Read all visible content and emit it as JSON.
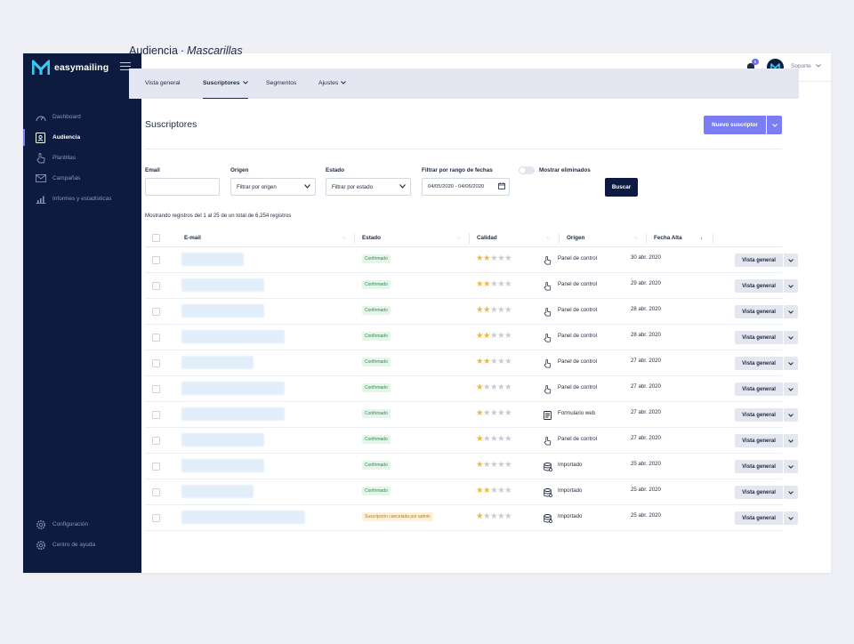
{
  "brand": {
    "name": "easymailing",
    "logo_icon": "m-logo-icon"
  },
  "sidebar": {
    "items": [
      {
        "label": "Dashboard",
        "icon": "gauge-icon"
      },
      {
        "label": "Audiencia",
        "icon": "address-book-icon",
        "active": true
      },
      {
        "label": "Plantillas",
        "icon": "hand-pointer-icon"
      },
      {
        "label": "Campañas",
        "icon": "envelope-icon"
      },
      {
        "label": "Informes y estadísticas",
        "icon": "bar-chart-icon"
      }
    ],
    "bottom_items": [
      {
        "label": "Configuración",
        "icon": "gear-icon"
      },
      {
        "label": "Centro de ayuda",
        "icon": "help-gear-icon"
      }
    ]
  },
  "topbar": {
    "notification_count": "5",
    "user_name": "Soporte"
  },
  "page": {
    "title": "Audiencia",
    "separator": "·",
    "subtitle": "Mascarillas"
  },
  "tabs": [
    {
      "label": "Vista general"
    },
    {
      "label": "Suscriptores",
      "active": true,
      "dropdown": true
    },
    {
      "label": "Segmentos"
    },
    {
      "label": "Ajustes",
      "dropdown": true
    }
  ],
  "section": {
    "title": "Suscriptores",
    "new_button": "Nuevo suscriptor"
  },
  "filters": {
    "email_label": "Email",
    "email_value": "",
    "origen_label": "Origen",
    "origen_value": "Filtrar por origen",
    "estado_label": "Estado",
    "estado_value": "Filtrar por estado",
    "fecha_label": "Filtrar por rango de fechas",
    "fecha_value": "04/05/2020 - 04/06/2020",
    "toggle_label": "Mostrar eliminados",
    "search_button": "Buscar"
  },
  "showing_text": "Mostrando registros del 1 al 25 de un total de 6,254 registros",
  "table": {
    "columns": [
      "E-mail",
      "Estado",
      "Calidad",
      "Origen",
      "Fecha Alta"
    ],
    "rows": [
      {
        "estado": "Confirmado",
        "estado_type": "ok",
        "calidad": 2,
        "origen": "Panel de control",
        "origen_icon": "hand-pointer-icon",
        "fecha": "30 abr. 2020",
        "action": "Vista general"
      },
      {
        "estado": "Confirmado",
        "estado_type": "ok",
        "calidad": 2,
        "origen": "Panel de control",
        "origen_icon": "hand-pointer-icon",
        "fecha": "29 abr. 2020",
        "action": "Vista general"
      },
      {
        "estado": "Confirmado",
        "estado_type": "ok",
        "calidad": 2,
        "origen": "Panel de control",
        "origen_icon": "hand-pointer-icon",
        "fecha": "28 abr. 2020",
        "action": "Vista general"
      },
      {
        "estado": "Confirmado",
        "estado_type": "ok",
        "calidad": 2,
        "origen": "Panel de control",
        "origen_icon": "hand-pointer-icon",
        "fecha": "28 abr. 2020",
        "action": "Vista general"
      },
      {
        "estado": "Confirmado",
        "estado_type": "ok",
        "calidad": 2,
        "origen": "Panel de control",
        "origen_icon": "hand-pointer-icon",
        "fecha": "27 abr. 2020",
        "action": "Vista general"
      },
      {
        "estado": "Confirmado",
        "estado_type": "ok",
        "calidad": 1,
        "origen": "Panel de control",
        "origen_icon": "hand-pointer-icon",
        "fecha": "27 abr. 2020",
        "action": "Vista general"
      },
      {
        "estado": "Confirmado",
        "estado_type": "ok",
        "calidad": 1,
        "origen": "Formulario web",
        "origen_icon": "form-icon",
        "fecha": "27 abr. 2020",
        "action": "Vista general"
      },
      {
        "estado": "Confirmado",
        "estado_type": "ok",
        "calidad": 1,
        "origen": "Panel de control",
        "origen_icon": "hand-pointer-icon",
        "fecha": "27 abr. 2020",
        "action": "Vista general"
      },
      {
        "estado": "Confirmado",
        "estado_type": "ok",
        "calidad": 1,
        "origen": "Importado",
        "origen_icon": "database-icon",
        "fecha": "25 abr. 2020",
        "action": "Vista general"
      },
      {
        "estado": "Confirmado",
        "estado_type": "ok",
        "calidad": 2,
        "origen": "Importado",
        "origen_icon": "database-icon",
        "fecha": "25 abr. 2020",
        "action": "Vista general"
      },
      {
        "estado": "Suscripción cancelada por admin",
        "estado_type": "warn",
        "calidad": 1,
        "origen": "Importado",
        "origen_icon": "database-icon",
        "fecha": "25 abr. 2020",
        "action": "Vista general"
      }
    ]
  },
  "colors": {
    "sidebar_bg": "#0d1b40",
    "accent": "#7b7ef3",
    "tab_bar_bg": "#e4e7f1",
    "badge_ok_bg": "#e5f5ea",
    "badge_warn_bg": "#fff1d6",
    "star": "#f0b73b"
  }
}
